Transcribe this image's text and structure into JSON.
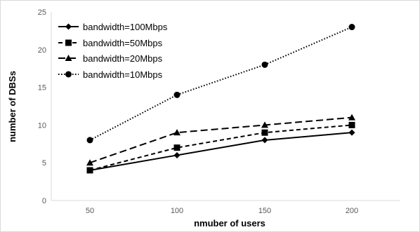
{
  "chart_data": {
    "type": "line",
    "categories": [
      "50",
      "100",
      "150",
      "200"
    ],
    "xlabel": "nmuber of users",
    "ylabel": "number of DBSs",
    "ylim": [
      0,
      25
    ],
    "yticks": [
      0,
      5,
      10,
      15,
      20,
      25
    ],
    "grid": false,
    "legend": "top-left, inside plot",
    "series": [
      {
        "name": "bandwidth=100Mbps",
        "values": [
          4,
          6,
          8,
          9
        ],
        "marker": "diamond",
        "dash": "solid",
        "color": "#000000"
      },
      {
        "name": "bandwidth=50Mbps",
        "values": [
          4,
          7,
          9,
          10
        ],
        "marker": "square",
        "dash": "dashed",
        "color": "#000000"
      },
      {
        "name": "bandwidth=20Mbps",
        "values": [
          5,
          9,
          10,
          11
        ],
        "marker": "triangle",
        "dash": "long-dashed",
        "color": "#000000"
      },
      {
        "name": "bandwidth=10Mbps",
        "values": [
          8,
          14,
          18,
          23
        ],
        "marker": "circle",
        "dash": "dotted",
        "color": "#000000"
      }
    ]
  }
}
